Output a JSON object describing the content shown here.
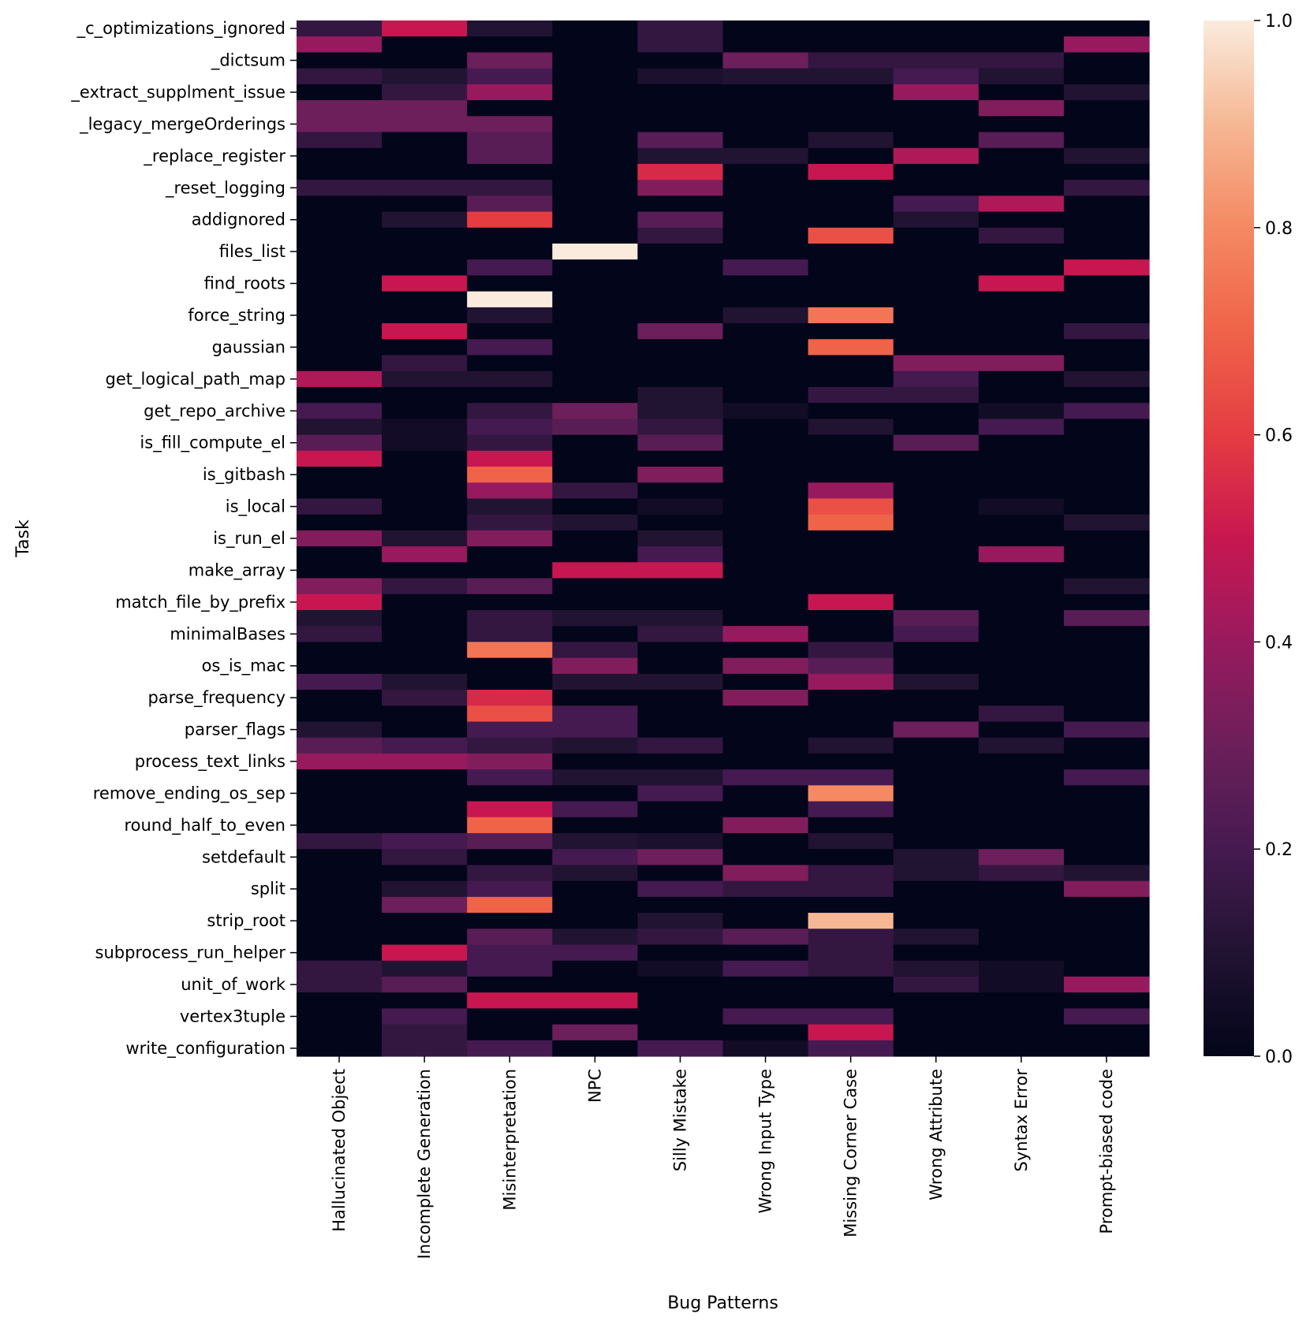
{
  "chart_data": {
    "type": "heatmap",
    "title": "",
    "xlabel": "Bug Patterns",
    "ylabel": "Task",
    "colorbar": {
      "min": 0.0,
      "max": 1.0,
      "ticks": [
        "0.0",
        "0.2",
        "0.4",
        "0.6",
        "0.8",
        "1.0"
      ],
      "colormap": "rocket"
    },
    "x_categories": [
      "Hallucinated Object",
      "Incomplete Generation",
      "Misinterpretation",
      "NPC",
      "Silly Mistake",
      "Wrong Input Type",
      "Missing Corner Case",
      "Wrong Attribute",
      "Syntax Error",
      "Prompt-biased code"
    ],
    "y_tick_labels": [
      "_c_optimizations_ignored",
      "_dictsum",
      "_extract_supplment_issue",
      "_legacy_mergeOrderings",
      "_replace_register",
      "_reset_logging",
      "addignored",
      "files_list",
      "find_roots",
      "force_string",
      "gaussian",
      "get_logical_path_map",
      "get_repo_archive",
      "is_fill_compute_el",
      "is_gitbash",
      "is_local",
      "is_run_el",
      "make_array",
      "match_file_by_prefix",
      "minimalBases",
      "os_is_mac",
      "parse_frequency",
      "parser_flags",
      "process_text_links",
      "remove_ending_os_sep",
      "round_half_to_even",
      "setdefault",
      "split",
      "strip_root",
      "subprocess_run_helper",
      "unit_of_work",
      "vertex3tuple",
      "write_configuration"
    ],
    "values": [
      [
        0.15,
        0.5,
        0.1,
        0.0,
        0.15,
        0.0,
        0.0,
        0.0,
        0.0,
        0.0
      ],
      [
        0.4,
        0.0,
        0.0,
        0.0,
        0.15,
        0.0,
        0.0,
        0.0,
        0.0,
        0.4
      ],
      [
        0.0,
        0.0,
        0.3,
        0.0,
        0.0,
        0.3,
        0.15,
        0.15,
        0.15,
        0.0
      ],
      [
        0.15,
        0.1,
        0.2,
        0.0,
        0.08,
        0.1,
        0.1,
        0.2,
        0.1,
        0.0
      ],
      [
        0.0,
        0.15,
        0.4,
        0.0,
        0.0,
        0.0,
        0.0,
        0.4,
        0.0,
        0.1
      ],
      [
        0.3,
        0.3,
        0.0,
        0.0,
        0.0,
        0.0,
        0.0,
        0.0,
        0.35,
        0.0
      ],
      [
        0.3,
        0.3,
        0.3,
        0.0,
        0.0,
        0.0,
        0.0,
        0.0,
        0.0,
        0.0
      ],
      [
        0.15,
        0.0,
        0.25,
        0.0,
        0.25,
        0.0,
        0.1,
        0.0,
        0.25,
        0.0
      ],
      [
        0.0,
        0.0,
        0.25,
        0.0,
        0.1,
        0.1,
        0.0,
        0.45,
        0.0,
        0.1
      ],
      [
        0.0,
        0.0,
        0.0,
        0.0,
        0.55,
        0.0,
        0.5,
        0.0,
        0.0,
        0.0
      ],
      [
        0.15,
        0.15,
        0.15,
        0.0,
        0.35,
        0.0,
        0.0,
        0.0,
        0.0,
        0.15
      ],
      [
        0.0,
        0.0,
        0.25,
        0.0,
        0.0,
        0.0,
        0.0,
        0.2,
        0.45,
        0.0
      ],
      [
        0.0,
        0.1,
        0.6,
        0.0,
        0.25,
        0.0,
        0.0,
        0.1,
        0.0,
        0.0
      ],
      [
        0.0,
        0.0,
        0.0,
        0.0,
        0.15,
        0.0,
        0.65,
        0.0,
        0.15,
        0.0
      ],
      [
        0.0,
        0.0,
        0.0,
        1.0,
        0.0,
        0.0,
        0.0,
        0.0,
        0.0,
        0.0
      ],
      [
        0.0,
        0.0,
        0.2,
        0.0,
        0.0,
        0.2,
        0.0,
        0.0,
        0.0,
        0.5
      ],
      [
        0.0,
        0.5,
        0.0,
        0.0,
        0.0,
        0.0,
        0.0,
        0.0,
        0.5,
        0.0
      ],
      [
        0.0,
        0.0,
        1.0,
        0.0,
        0.0,
        0.0,
        0.0,
        0.0,
        0.0,
        0.0
      ],
      [
        0.0,
        0.0,
        0.1,
        0.0,
        0.0,
        0.1,
        0.75,
        0.0,
        0.0,
        0.0
      ],
      [
        0.0,
        0.5,
        0.0,
        0.0,
        0.3,
        0.0,
        0.0,
        0.0,
        0.0,
        0.15
      ],
      [
        0.0,
        0.0,
        0.2,
        0.0,
        0.0,
        0.0,
        0.7,
        0.0,
        0.0,
        0.0
      ],
      [
        0.0,
        0.15,
        0.0,
        0.0,
        0.0,
        0.0,
        0.0,
        0.35,
        0.35,
        0.0
      ],
      [
        0.45,
        0.1,
        0.1,
        0.0,
        0.0,
        0.0,
        0.0,
        0.2,
        0.0,
        0.1
      ],
      [
        0.0,
        0.0,
        0.0,
        0.0,
        0.1,
        0.0,
        0.15,
        0.15,
        0.0,
        0.0
      ],
      [
        0.2,
        0.0,
        0.15,
        0.3,
        0.1,
        0.05,
        0.0,
        0.0,
        0.05,
        0.2
      ],
      [
        0.1,
        0.05,
        0.2,
        0.25,
        0.15,
        0.0,
        0.1,
        0.0,
        0.2,
        0.0
      ],
      [
        0.25,
        0.05,
        0.15,
        0.0,
        0.25,
        0.0,
        0.0,
        0.25,
        0.0,
        0.0
      ],
      [
        0.5,
        0.0,
        0.5,
        0.0,
        0.0,
        0.0,
        0.0,
        0.0,
        0.0,
        0.0
      ],
      [
        0.0,
        0.0,
        0.7,
        0.0,
        0.35,
        0.0,
        0.0,
        0.0,
        0.0,
        0.0
      ],
      [
        0.0,
        0.0,
        0.4,
        0.15,
        0.0,
        0.0,
        0.4,
        0.0,
        0.0,
        0.0
      ],
      [
        0.15,
        0.0,
        0.1,
        0.0,
        0.05,
        0.0,
        0.65,
        0.0,
        0.05,
        0.0
      ],
      [
        0.0,
        0.0,
        0.15,
        0.1,
        0.0,
        0.0,
        0.7,
        0.0,
        0.0,
        0.1
      ],
      [
        0.35,
        0.1,
        0.35,
        0.0,
        0.1,
        0.0,
        0.0,
        0.0,
        0.0,
        0.0
      ],
      [
        0.0,
        0.4,
        0.0,
        0.0,
        0.2,
        0.0,
        0.0,
        0.0,
        0.4,
        0.0
      ],
      [
        0.0,
        0.0,
        0.0,
        0.5,
        0.5,
        0.0,
        0.0,
        0.0,
        0.0,
        0.0
      ],
      [
        0.35,
        0.15,
        0.25,
        0.0,
        0.0,
        0.0,
        0.0,
        0.0,
        0.0,
        0.1
      ],
      [
        0.5,
        0.0,
        0.0,
        0.0,
        0.0,
        0.0,
        0.5,
        0.0,
        0.0,
        0.0
      ],
      [
        0.1,
        0.0,
        0.15,
        0.1,
        0.1,
        0.0,
        0.0,
        0.25,
        0.0,
        0.25
      ],
      [
        0.15,
        0.0,
        0.15,
        0.0,
        0.15,
        0.4,
        0.0,
        0.2,
        0.0,
        0.0
      ],
      [
        0.0,
        0.0,
        0.75,
        0.15,
        0.0,
        0.0,
        0.15,
        0.0,
        0.0,
        0.0
      ],
      [
        0.0,
        0.0,
        0.0,
        0.35,
        0.0,
        0.35,
        0.25,
        0.0,
        0.0,
        0.0
      ],
      [
        0.2,
        0.1,
        0.0,
        0.1,
        0.1,
        0.0,
        0.4,
        0.1,
        0.0,
        0.0
      ],
      [
        0.0,
        0.15,
        0.55,
        0.0,
        0.0,
        0.35,
        0.0,
        0.0,
        0.0,
        0.0
      ],
      [
        0.0,
        0.0,
        0.65,
        0.2,
        0.0,
        0.0,
        0.0,
        0.0,
        0.15,
        0.0
      ],
      [
        0.1,
        0.0,
        0.2,
        0.2,
        0.0,
        0.0,
        0.0,
        0.3,
        0.0,
        0.2
      ],
      [
        0.25,
        0.2,
        0.15,
        0.1,
        0.15,
        0.0,
        0.1,
        0.0,
        0.1,
        0.0
      ],
      [
        0.4,
        0.4,
        0.35,
        0.0,
        0.0,
        0.0,
        0.0,
        0.0,
        0.0,
        0.0
      ],
      [
        0.0,
        0.0,
        0.2,
        0.1,
        0.1,
        0.2,
        0.2,
        0.0,
        0.0,
        0.2
      ],
      [
        0.0,
        0.0,
        0.0,
        0.0,
        0.2,
        0.0,
        0.8,
        0.0,
        0.0,
        0.0
      ],
      [
        0.0,
        0.0,
        0.5,
        0.2,
        0.0,
        0.0,
        0.2,
        0.0,
        0.0,
        0.0
      ],
      [
        0.0,
        0.0,
        0.7,
        0.0,
        0.0,
        0.35,
        0.0,
        0.0,
        0.0,
        0.0
      ],
      [
        0.15,
        0.2,
        0.25,
        0.1,
        0.08,
        0.0,
        0.1,
        0.0,
        0.0,
        0.0
      ],
      [
        0.0,
        0.15,
        0.0,
        0.2,
        0.3,
        0.0,
        0.0,
        0.1,
        0.3,
        0.0
      ],
      [
        0.0,
        0.0,
        0.15,
        0.1,
        0.0,
        0.35,
        0.15,
        0.1,
        0.15,
        0.1
      ],
      [
        0.0,
        0.1,
        0.2,
        0.0,
        0.2,
        0.15,
        0.15,
        0.0,
        0.0,
        0.35
      ],
      [
        0.0,
        0.3,
        0.7,
        0.0,
        0.0,
        0.0,
        0.0,
        0.0,
        0.0,
        0.0
      ],
      [
        0.0,
        0.0,
        0.0,
        0.0,
        0.1,
        0.0,
        0.9,
        0.0,
        0.0,
        0.0
      ],
      [
        0.0,
        0.0,
        0.25,
        0.1,
        0.15,
        0.25,
        0.15,
        0.1,
        0.0,
        0.0
      ],
      [
        0.0,
        0.5,
        0.2,
        0.2,
        0.0,
        0.0,
        0.15,
        0.0,
        0.0,
        0.0
      ],
      [
        0.15,
        0.1,
        0.2,
        0.0,
        0.05,
        0.2,
        0.15,
        0.1,
        0.05,
        0.0
      ],
      [
        0.15,
        0.25,
        0.0,
        0.0,
        0.0,
        0.0,
        0.0,
        0.15,
        0.05,
        0.4
      ],
      [
        0.0,
        0.0,
        0.5,
        0.5,
        0.0,
        0.0,
        0.0,
        0.0,
        0.0,
        0.0
      ],
      [
        0.0,
        0.2,
        0.0,
        0.0,
        0.0,
        0.2,
        0.2,
        0.0,
        0.0,
        0.2
      ],
      [
        0.0,
        0.15,
        0.0,
        0.3,
        0.0,
        0.0,
        0.5,
        0.0,
        0.0,
        0.0
      ],
      [
        0.0,
        0.15,
        0.2,
        0.0,
        0.2,
        0.05,
        0.2,
        0.0,
        0.0,
        0.0
      ]
    ]
  }
}
